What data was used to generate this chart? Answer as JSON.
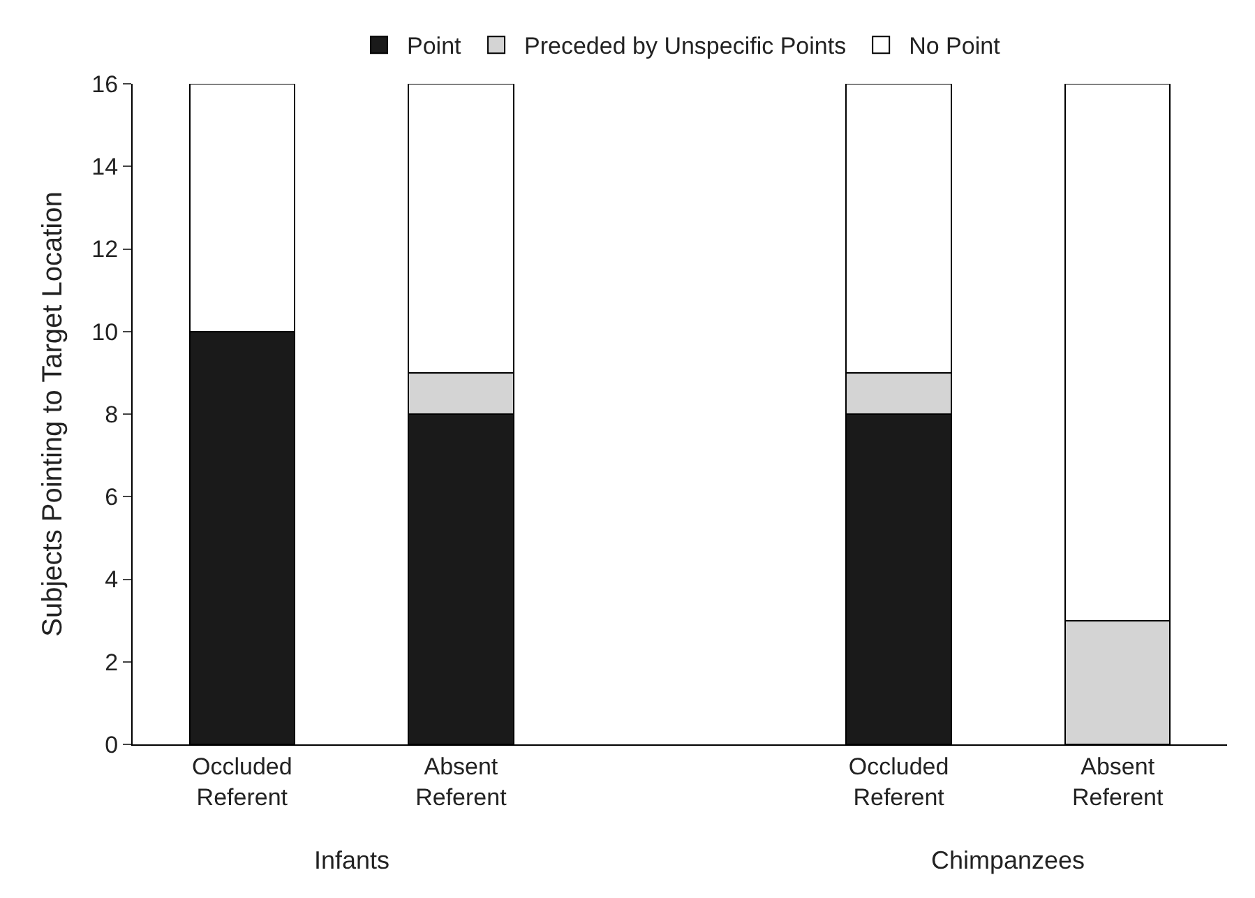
{
  "chart_data": {
    "type": "bar",
    "stacked": true,
    "ylabel": "Subjects Pointing to Target Location",
    "categories": [
      "Occluded Referent",
      "Absent Referent",
      null,
      "Occluded Referent",
      "Absent Referent"
    ],
    "series": [
      {
        "name": "Point",
        "color": "#1a1a1a",
        "values": [
          10,
          8,
          null,
          8,
          0
        ]
      },
      {
        "name": "Preceded by Unspecific Points",
        "color": "#d4d4d4",
        "values": [
          0,
          1,
          null,
          1,
          3
        ]
      },
      {
        "name": "No Point",
        "color": "#ffffff",
        "values": [
          6,
          7,
          null,
          7,
          13
        ]
      }
    ],
    "annotations": [
      "Infants",
      "Chimpanzees"
    ],
    "ylim": [
      0,
      16
    ],
    "yticks": [
      0,
      2,
      4,
      6,
      8,
      10,
      12,
      14,
      16
    ],
    "legend": "top"
  }
}
